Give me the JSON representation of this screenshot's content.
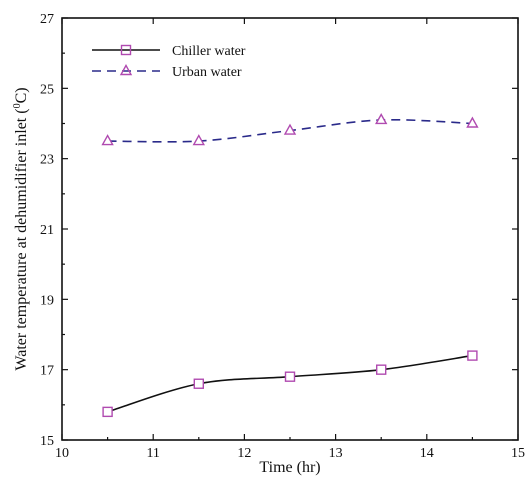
{
  "chart_data": {
    "type": "line",
    "xlabel": "Time (hr)",
    "ylabel": "Water temperature at dehumidifier inlet (",
    "ylabel_super": "0",
    "ylabel_tail": "C)",
    "xlim": [
      10,
      15
    ],
    "ylim": [
      15,
      27
    ],
    "xticks": [
      10,
      11,
      12,
      13,
      14,
      15
    ],
    "yticks": [
      15,
      17,
      19,
      21,
      23,
      25,
      27
    ],
    "grid": false,
    "legend_position": "top-left",
    "x": [
      10.5,
      11.5,
      12.5,
      13.5,
      14.5
    ],
    "series": [
      {
        "name": "Chiller water",
        "values": [
          15.8,
          16.6,
          16.8,
          17.0,
          17.4
        ],
        "line_color": "#111111",
        "marker_color": "#b04ab0",
        "marker": "square",
        "line_style": "solid"
      },
      {
        "name": "Urban water",
        "values": [
          23.5,
          23.5,
          23.8,
          24.1,
          24.0
        ],
        "line_color": "#2a2a8a",
        "marker_color": "#b04ab0",
        "marker": "triangle",
        "line_style": "dashed"
      }
    ]
  }
}
